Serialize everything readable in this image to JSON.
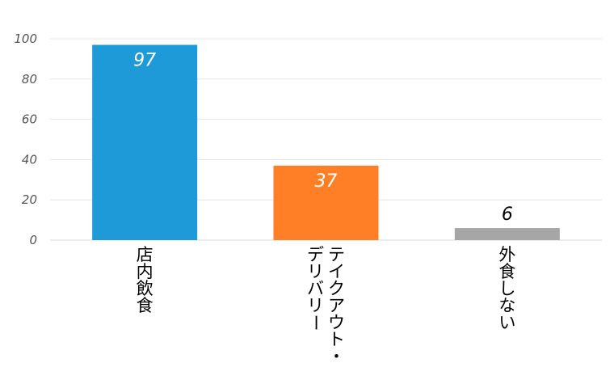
{
  "chart_data": {
    "type": "bar",
    "title": "",
    "xlabel": "",
    "ylabel": "",
    "categories": [
      "店内飲食",
      "テイクアウト・デリバリー",
      "外食しない"
    ],
    "category_label_columns": [
      [
        "店内飲食"
      ],
      [
        "テイクアウト・",
        "デリバリー"
      ],
      [
        "外食しない"
      ]
    ],
    "values": [
      97,
      37,
      6
    ],
    "data_labels": [
      "97",
      "37",
      "6"
    ],
    "colors": [
      "#1f9ad8",
      "#ff7f27",
      "#a6a6a6"
    ],
    "label_colors": [
      "#ffffff",
      "#ffffff",
      "#000000"
    ],
    "ylim": [
      0,
      100
    ],
    "yticks": [
      0,
      20,
      40,
      60,
      80,
      100
    ],
    "ytick_labels": [
      "0",
      "20",
      "40",
      "60",
      "80",
      "100"
    ],
    "grid": true,
    "legend": "none"
  }
}
